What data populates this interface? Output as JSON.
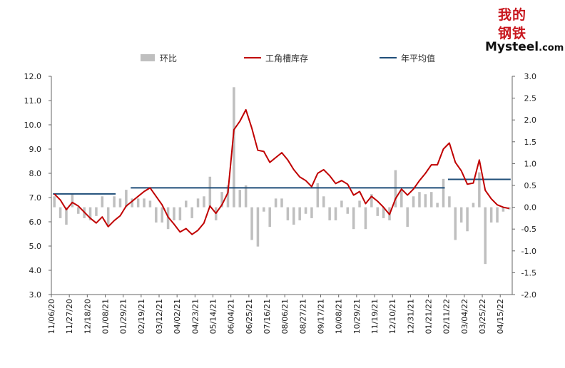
{
  "logo": {
    "line1": "我的",
    "line2": "钢铁",
    "brand": "Mysteel",
    "suffix": ".com"
  },
  "chart_data": {
    "type": "bar+line",
    "legend": [
      "环比",
      "工角槽库存",
      "年平均值"
    ],
    "colors": {
      "bar": "#bfbfbf",
      "inventory": "#c00000",
      "average": "#1f4e79"
    },
    "y_left": {
      "min": 3.0,
      "max": 12.0,
      "step": 1.0,
      "ticks": [
        "3.0",
        "4.0",
        "5.0",
        "6.0",
        "7.0",
        "8.0",
        "9.0",
        "10.0",
        "11.0",
        "12.0"
      ]
    },
    "y_right": {
      "min": -2.0,
      "max": 3.0,
      "step": 0.5,
      "ticks": [
        "-2.0",
        "-1.5",
        "-1.0",
        "-0.5",
        "0.0",
        "0.5",
        "1.0",
        "1.5",
        "2.0",
        "2.5",
        "3.0"
      ]
    },
    "x_tick_labels": [
      "11/06/20",
      "11/27/20",
      "12/18/20",
      "01/08/21",
      "01/29/21",
      "02/19/21",
      "03/12/21",
      "04/02/21",
      "04/23/21",
      "05/14/21",
      "06/04/21",
      "06/25/21",
      "07/16/21",
      "08/06/21",
      "08/27/21",
      "09/17/21",
      "10/08/21",
      "10/29/21",
      "11/19/21",
      "12/10/21",
      "12/31/21",
      "01/21/22",
      "02/11/22",
      "03/04/22",
      "03/25/22",
      "04/15/22"
    ],
    "inventory": [
      7.15,
      6.9,
      6.5,
      6.8,
      6.65,
      6.4,
      6.15,
      5.95,
      6.2,
      5.8,
      6.05,
      6.25,
      6.65,
      6.85,
      7.05,
      7.25,
      7.4,
      7.05,
      6.7,
      6.2,
      5.9,
      5.58,
      5.72,
      5.48,
      5.65,
      5.95,
      6.65,
      6.35,
      6.7,
      7.2,
      9.8,
      10.15,
      10.62,
      9.85,
      8.95,
      8.9,
      8.45,
      8.65,
      8.85,
      8.55,
      8.15,
      7.85,
      7.7,
      7.45,
      8.0,
      8.15,
      7.9,
      7.58,
      7.7,
      7.55,
      7.1,
      7.25,
      6.75,
      7.05,
      6.85,
      6.6,
      6.3,
      6.95,
      7.35,
      7.1,
      7.35,
      7.7,
      8.0,
      8.35,
      8.35,
      9.0,
      9.25,
      8.45,
      8.1,
      7.55,
      7.6,
      8.55,
      7.3,
      6.95,
      6.7,
      6.6,
      6.55
    ],
    "wow": [
      0.25,
      -0.25,
      -0.4,
      0.3,
      -0.15,
      -0.25,
      -0.3,
      -0.2,
      0.25,
      -0.4,
      0.25,
      0.2,
      0.4,
      0.2,
      0.2,
      0.2,
      0.15,
      -0.35,
      -0.35,
      -0.5,
      -0.3,
      -0.3,
      0.15,
      -0.25,
      0.2,
      0.25,
      0.7,
      -0.3,
      0.35,
      0.5,
      2.75,
      0.4,
      0.5,
      -0.75,
      -0.9,
      -0.1,
      -0.45,
      0.2,
      0.2,
      -0.3,
      -0.4,
      -0.3,
      -0.15,
      -0.25,
      0.55,
      0.25,
      -0.3,
      -0.3,
      0.15,
      -0.15,
      -0.5,
      0.15,
      -0.5,
      0.3,
      -0.2,
      -0.25,
      -0.3,
      0.85,
      0.4,
      -0.45,
      0.25,
      0.35,
      0.3,
      0.35,
      0.1,
      0.65,
      0.25,
      -0.75,
      -0.35,
      -0.55,
      0.1,
      0.8,
      -1.3,
      -0.35,
      -0.35,
      -0.1,
      -0.05
    ],
    "averages": [
      {
        "year": "2020",
        "value": 7.15,
        "start": 0,
        "end": 10
      },
      {
        "year": "2021",
        "value": 7.4,
        "start": 13,
        "end": 65
      },
      {
        "year": "2022",
        "value": 7.75,
        "start": 66,
        "end": 76
      }
    ]
  }
}
